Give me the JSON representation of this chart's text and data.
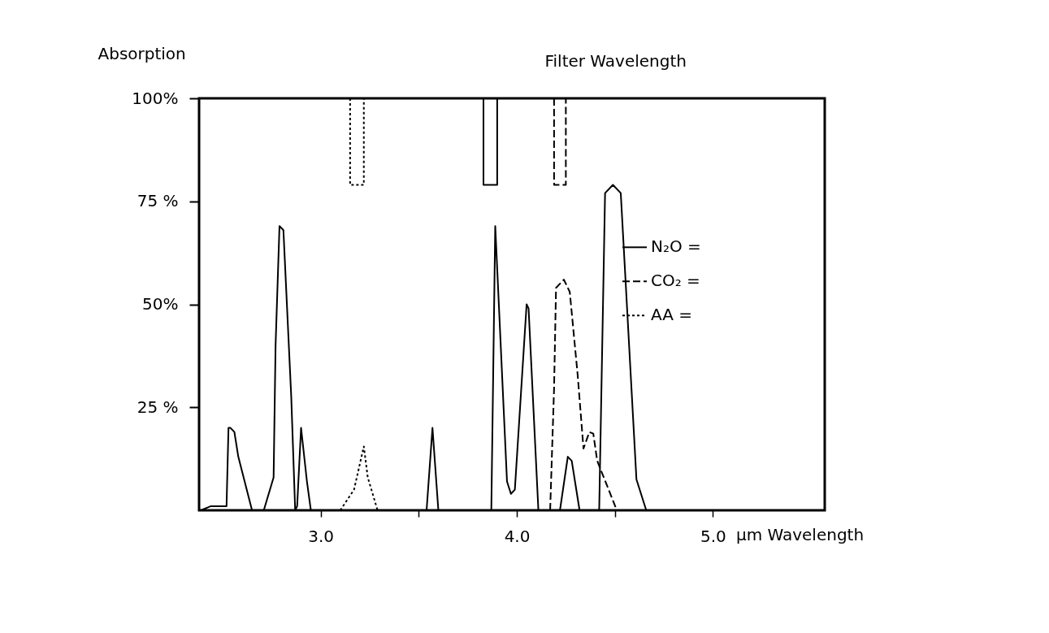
{
  "chart_data": {
    "type": "line",
    "ylabel": "Absorption",
    "xlabel": "μm Wavelength",
    "annotations": [
      "Filter Wavelength"
    ],
    "xlim": [
      2.38,
      5.57
    ],
    "xticks": [
      {
        "value": 3.0,
        "label": "3.0"
      },
      {
        "value": 3.5,
        "label": null
      },
      {
        "value": 4.0,
        "label": "4.0"
      },
      {
        "value": 4.5,
        "label": null
      },
      {
        "value": 5.0,
        "label": "5.0"
      }
    ],
    "ylim": [
      0,
      100
    ],
    "yticks": [
      {
        "value": 25,
        "label": "25 %"
      },
      {
        "value": 50,
        "label": "50%"
      },
      {
        "value": 75,
        "label": "75 %"
      },
      {
        "value": 100,
        "label": "100%"
      }
    ],
    "grid": false,
    "legend": "right",
    "series": [
      {
        "name": "N₂O =",
        "color": "#000000",
        "line_style": "solid",
        "x": [
          2.39,
          2.44,
          2.52,
          2.53,
          2.54,
          2.56,
          2.58,
          2.65,
          2.68,
          2.71,
          2.76,
          2.77,
          2.79,
          2.81,
          2.85,
          2.87,
          2.88,
          2.9,
          2.93,
          2.95,
          3.2,
          3.54,
          3.57,
          3.6,
          3.7,
          3.87,
          3.89,
          3.95,
          3.97,
          3.99,
          4.05,
          4.06,
          4.11,
          4.16,
          4.22,
          4.26,
          4.28,
          4.32,
          4.37,
          4.42,
          4.45,
          4.49,
          4.53,
          4.61,
          4.66
        ],
        "values": [
          0,
          1,
          1,
          20,
          20,
          19,
          13,
          0,
          null,
          0,
          8,
          40,
          69,
          68,
          27.5,
          0,
          1,
          20,
          7,
          0,
          null,
          0,
          20,
          0,
          null,
          0,
          69,
          7,
          4,
          5,
          50,
          49,
          0,
          null,
          0,
          13,
          12,
          0,
          null,
          0,
          77,
          79,
          77,
          7.5,
          0
        ]
      },
      {
        "name": "CO₂ =",
        "color": "#000000",
        "line_style": "dashed",
        "x": [
          4.17,
          4.19,
          4.2,
          4.24,
          4.27,
          4.31,
          4.34,
          4.37,
          4.39,
          4.41,
          4.51
        ],
        "values": [
          0,
          29.6,
          54,
          56,
          53,
          33,
          15,
          19,
          18.6,
          12,
          0
        ]
      },
      {
        "name": "AA =",
        "color": "#000000",
        "line_style": "dotted",
        "x": [
          3.1,
          3.17,
          3.22,
          3.24,
          3.29
        ],
        "values": [
          0,
          5,
          15.5,
          8,
          0
        ]
      },
      {
        "color": "#000000",
        "line_style": "dotted",
        "x": [
          3.15,
          3.15,
          3.22,
          3.22
        ],
        "values": [
          100,
          79,
          79,
          100
        ]
      },
      {
        "color": "#000000",
        "line_style": "solid",
        "x": [
          3.83,
          3.83,
          3.9,
          3.9
        ],
        "values": [
          100,
          79,
          79,
          100
        ]
      },
      {
        "color": "#000000",
        "line_style": "dashed",
        "x": [
          4.19,
          4.19,
          4.25,
          4.25
        ],
        "values": [
          100,
          79,
          79,
          100
        ]
      }
    ]
  }
}
